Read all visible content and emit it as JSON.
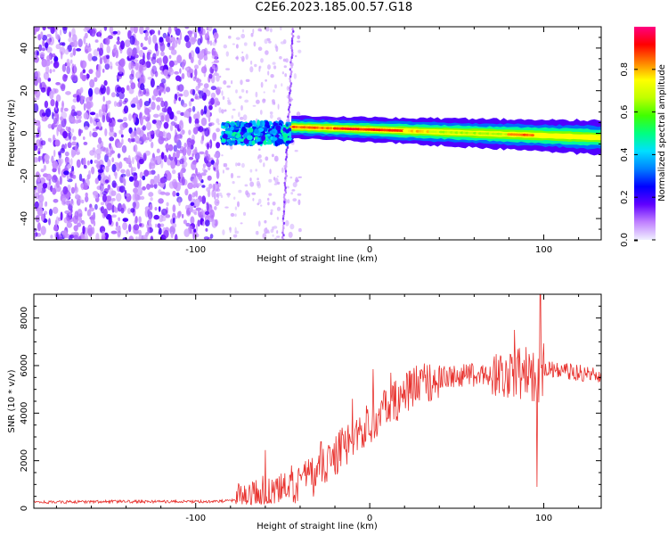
{
  "title": "C2E6.2023.185.00.57.G18",
  "chart_data": [
    {
      "type": "heatmap",
      "xlabel": "Height of straight line (km)",
      "ylabel": "Frequency (Hz)",
      "xlim": [
        -193,
        133
      ],
      "ylim": [
        -50,
        50
      ],
      "xticks": [
        -100,
        0,
        100
      ],
      "yticks": [
        -40,
        -20,
        0,
        20,
        40
      ],
      "grid": false,
      "regions": [
        {
          "name": "noise",
          "x": [
            -193,
            -87
          ],
          "y": [
            -50,
            50
          ],
          "amplitude": [
            0.05,
            0.2
          ]
        },
        {
          "name": "burst",
          "x": [
            -85,
            -45
          ],
          "y": [
            -4,
            6
          ],
          "amplitude": [
            0.2,
            0.5
          ]
        },
        {
          "name": "ridge",
          "x": [
            -45,
            133
          ],
          "y_center": [
            3,
            -2
          ],
          "amplitude_peak": 0.95
        }
      ],
      "colorbar": {
        "label": "Normalized spectral amplitude",
        "ticks": [
          0.0,
          0.2,
          0.4,
          0.6,
          0.8
        ],
        "range": [
          0,
          1
        ],
        "colors": [
          "#f0f0ff",
          "#c080ff",
          "#6000ff",
          "#0000ff",
          "#0080ff",
          "#00e0ff",
          "#00ff80",
          "#40ff00",
          "#c0ff00",
          "#ffff00",
          "#ff8000",
          "#ff0000",
          "#ff0080"
        ]
      }
    },
    {
      "type": "line",
      "xlabel": "Height of straight line (km)",
      "ylabel": "SNR (10 * v/v)",
      "xlim": [
        -193,
        133
      ],
      "ylim": [
        0,
        9000
      ],
      "xticks": [
        -100,
        0,
        100
      ],
      "yticks": [
        0,
        2000,
        4000,
        6000,
        8000
      ],
      "grid": false,
      "color": "#e8322e",
      "trend": {
        "x": [
          -193,
          -150,
          -100,
          -80,
          -60,
          -45,
          -30,
          -20,
          -10,
          0,
          10,
          20,
          30,
          40,
          60,
          80,
          90,
          96,
          98,
          100,
          110,
          120,
          133
        ],
        "y": [
          250,
          280,
          280,
          300,
          700,
          800,
          1500,
          2200,
          2900,
          3600,
          4200,
          4800,
          5300,
          5500,
          5600,
          5650,
          5700,
          5500,
          5500,
          5900,
          5800,
          5700,
          5600
        ]
      },
      "spikes": [
        {
          "x": -60,
          "y": 2450
        },
        {
          "x": -45,
          "y": 1800
        },
        {
          "x": -28,
          "y": 2800
        },
        {
          "x": -10,
          "y": 4600
        },
        {
          "x": 2,
          "y": 5850
        },
        {
          "x": 12,
          "y": 5700
        },
        {
          "x": 83,
          "y": 7500
        },
        {
          "x": 96,
          "y": 900
        },
        {
          "x": 98,
          "y": 9000
        }
      ]
    }
  ]
}
